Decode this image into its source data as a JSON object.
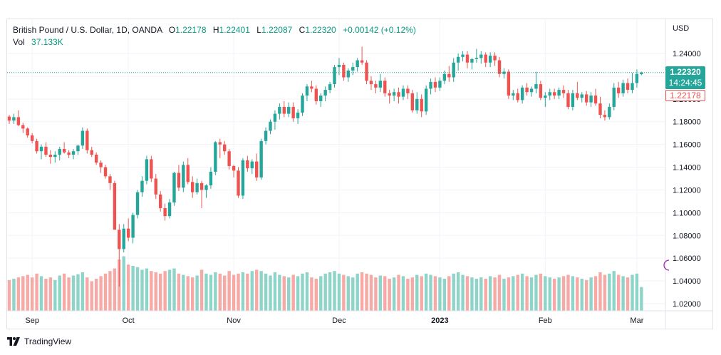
{
  "legend": {
    "symbol": "British Pound / U.S. Dollar, 1D, OANDA",
    "open_label": "O",
    "open": "1.22178",
    "high_label": "H",
    "high": "1.22401",
    "low_label": "L",
    "low": "1.22087",
    "close_label": "C",
    "close": "1.22320",
    "change": "+0.00142 (+0.12%)",
    "volume_label": "Vol",
    "volume": "37.133K"
  },
  "price_scale": {
    "currency": "USD",
    "last_price": "1.22320",
    "countdown": "14:24:45",
    "open_price": "1.22178"
  },
  "brand": {
    "name": "TradingView"
  },
  "colors": {
    "up": "#26a69a",
    "down": "#ef5350",
    "up_volume": "#8fd4c9",
    "down_volume": "#f6a9a5",
    "grid": "#f0f3fa"
  },
  "icons": {
    "logo": "tradingview-logo-icon",
    "alert": "alert-circle-icon"
  },
  "chart_data": {
    "type": "candlestick",
    "title": "British Pound / U.S. Dollar, 1D, OANDA",
    "y_ticks": [
      "1.24000",
      "1.22000",
      "1.20000",
      "1.18000",
      "1.16000",
      "1.14000",
      "1.12000",
      "1.10000",
      "1.08000",
      "1.06000",
      "1.04000",
      "1.02000"
    ],
    "ylim": [
      1.02,
      1.24
    ],
    "x_labels": [
      {
        "label": "Sep",
        "index": 5,
        "bold": false
      },
      {
        "label": "Oct",
        "index": 26,
        "bold": false
      },
      {
        "label": "Nov",
        "index": 49,
        "bold": false
      },
      {
        "label": "Dec",
        "index": 72,
        "bold": false
      },
      {
        "label": "2023",
        "index": 94,
        "bold": true
      },
      {
        "label": "Feb",
        "index": 117,
        "bold": false
      },
      {
        "label": "Mar",
        "index": 137,
        "bold": false
      }
    ],
    "grid": true,
    "last_close": 1.2232,
    "candles": [
      [
        1.1845,
        1.186,
        1.178,
        1.181,
        48
      ],
      [
        1.181,
        1.187,
        1.178,
        1.184,
        50
      ],
      [
        1.184,
        1.19,
        1.176,
        1.177,
        52
      ],
      [
        1.177,
        1.179,
        1.17,
        1.174,
        54
      ],
      [
        1.174,
        1.175,
        1.166,
        1.168,
        56
      ],
      [
        1.168,
        1.17,
        1.161,
        1.163,
        52
      ],
      [
        1.163,
        1.165,
        1.152,
        1.154,
        58
      ],
      [
        1.154,
        1.16,
        1.147,
        1.158,
        54
      ],
      [
        1.158,
        1.162,
        1.149,
        1.151,
        50
      ],
      [
        1.151,
        1.155,
        1.143,
        1.149,
        52
      ],
      [
        1.149,
        1.154,
        1.144,
        1.151,
        48
      ],
      [
        1.151,
        1.158,
        1.146,
        1.156,
        55
      ],
      [
        1.156,
        1.162,
        1.152,
        1.153,
        58
      ],
      [
        1.153,
        1.155,
        1.148,
        1.151,
        52
      ],
      [
        1.151,
        1.156,
        1.147,
        1.154,
        55
      ],
      [
        1.154,
        1.16,
        1.151,
        1.159,
        57
      ],
      [
        1.159,
        1.175,
        1.156,
        1.172,
        60
      ],
      [
        1.172,
        1.174,
        1.152,
        1.155,
        52
      ],
      [
        1.155,
        1.158,
        1.149,
        1.151,
        46
      ],
      [
        1.151,
        1.153,
        1.142,
        1.144,
        50
      ],
      [
        1.144,
        1.146,
        1.135,
        1.14,
        54
      ],
      [
        1.14,
        1.142,
        1.13,
        1.132,
        58
      ],
      [
        1.132,
        1.134,
        1.12,
        1.126,
        62
      ],
      [
        1.126,
        1.128,
        1.087,
        1.085,
        66
      ],
      [
        1.085,
        1.09,
        1.035,
        1.068,
        80
      ],
      [
        1.068,
        1.09,
        1.065,
        1.086,
        85
      ],
      [
        1.086,
        1.095,
        1.075,
        1.078,
        72
      ],
      [
        1.078,
        1.1,
        1.073,
        1.098,
        70
      ],
      [
        1.098,
        1.12,
        1.095,
        1.118,
        68
      ],
      [
        1.118,
        1.132,
        1.114,
        1.128,
        64
      ],
      [
        1.128,
        1.15,
        1.125,
        1.147,
        66
      ],
      [
        1.147,
        1.15,
        1.127,
        1.13,
        62
      ],
      [
        1.13,
        1.134,
        1.112,
        1.116,
        60
      ],
      [
        1.116,
        1.119,
        1.101,
        1.104,
        58
      ],
      [
        1.104,
        1.108,
        1.093,
        1.097,
        62
      ],
      [
        1.097,
        1.112,
        1.095,
        1.109,
        64
      ],
      [
        1.109,
        1.136,
        1.106,
        1.135,
        66
      ],
      [
        1.135,
        1.142,
        1.119,
        1.122,
        58
      ],
      [
        1.122,
        1.145,
        1.118,
        1.142,
        56
      ],
      [
        1.142,
        1.148,
        1.125,
        1.127,
        54
      ],
      [
        1.127,
        1.132,
        1.113,
        1.118,
        52
      ],
      [
        1.118,
        1.13,
        1.116,
        1.126,
        55
      ],
      [
        1.126,
        1.128,
        1.104,
        1.12,
        64
      ],
      [
        1.12,
        1.125,
        1.113,
        1.124,
        58
      ],
      [
        1.124,
        1.14,
        1.121,
        1.136,
        56
      ],
      [
        1.136,
        1.163,
        1.133,
        1.162,
        60
      ],
      [
        1.162,
        1.165,
        1.148,
        1.16,
        58
      ],
      [
        1.16,
        1.163,
        1.151,
        1.154,
        55
      ],
      [
        1.154,
        1.156,
        1.138,
        1.141,
        62
      ],
      [
        1.141,
        1.142,
        1.131,
        1.137,
        56
      ],
      [
        1.137,
        1.14,
        1.113,
        1.115,
        58
      ],
      [
        1.115,
        1.148,
        1.112,
        1.146,
        60
      ],
      [
        1.146,
        1.15,
        1.136,
        1.139,
        58
      ],
      [
        1.139,
        1.147,
        1.134,
        1.145,
        62
      ],
      [
        1.145,
        1.152,
        1.128,
        1.131,
        64
      ],
      [
        1.131,
        1.165,
        1.129,
        1.163,
        62
      ],
      [
        1.163,
        1.175,
        1.16,
        1.172,
        58
      ],
      [
        1.172,
        1.182,
        1.169,
        1.18,
        55
      ],
      [
        1.18,
        1.19,
        1.173,
        1.187,
        60
      ],
      [
        1.187,
        1.196,
        1.182,
        1.193,
        56
      ],
      [
        1.193,
        1.198,
        1.184,
        1.187,
        54
      ],
      [
        1.187,
        1.197,
        1.184,
        1.193,
        52
      ],
      [
        1.193,
        1.197,
        1.18,
        1.183,
        56
      ],
      [
        1.183,
        1.191,
        1.178,
        1.188,
        54
      ],
      [
        1.188,
        1.205,
        1.185,
        1.203,
        58
      ],
      [
        1.203,
        1.213,
        1.198,
        1.211,
        60
      ],
      [
        1.211,
        1.216,
        1.206,
        1.209,
        52
      ],
      [
        1.209,
        1.212,
        1.195,
        1.198,
        50
      ],
      [
        1.198,
        1.205,
        1.193,
        1.203,
        54
      ],
      [
        1.203,
        1.211,
        1.198,
        1.208,
        58
      ],
      [
        1.208,
        1.215,
        1.205,
        1.213,
        60
      ],
      [
        1.213,
        1.23,
        1.21,
        1.228,
        62
      ],
      [
        1.228,
        1.236,
        1.221,
        1.23,
        58
      ],
      [
        1.23,
        1.232,
        1.216,
        1.219,
        56
      ],
      [
        1.219,
        1.227,
        1.215,
        1.225,
        54
      ],
      [
        1.225,
        1.232,
        1.221,
        1.228,
        52
      ],
      [
        1.228,
        1.236,
        1.224,
        1.234,
        58
      ],
      [
        1.234,
        1.246,
        1.23,
        1.232,
        60
      ],
      [
        1.232,
        1.234,
        1.213,
        1.216,
        58
      ],
      [
        1.216,
        1.22,
        1.208,
        1.213,
        56
      ],
      [
        1.213,
        1.216,
        1.205,
        1.21,
        52
      ],
      [
        1.21,
        1.222,
        1.206,
        1.216,
        55
      ],
      [
        1.216,
        1.219,
        1.202,
        1.205,
        54
      ],
      [
        1.205,
        1.208,
        1.196,
        1.203,
        50
      ],
      [
        1.203,
        1.209,
        1.198,
        1.206,
        52
      ],
      [
        1.206,
        1.21,
        1.196,
        1.202,
        56
      ],
      [
        1.202,
        1.212,
        1.199,
        1.209,
        54
      ],
      [
        1.209,
        1.212,
        1.2,
        1.205,
        50
      ],
      [
        1.205,
        1.208,
        1.188,
        1.19,
        52
      ],
      [
        1.19,
        1.206,
        1.187,
        1.2,
        56
      ],
      [
        1.2,
        1.204,
        1.184,
        1.189,
        54
      ],
      [
        1.189,
        1.212,
        1.186,
        1.209,
        58
      ],
      [
        1.209,
        1.218,
        1.204,
        1.215,
        56
      ],
      [
        1.215,
        1.219,
        1.206,
        1.21,
        54
      ],
      [
        1.21,
        1.219,
        1.207,
        1.216,
        52
      ],
      [
        1.216,
        1.225,
        1.213,
        1.222,
        50
      ],
      [
        1.222,
        1.229,
        1.215,
        1.219,
        54
      ],
      [
        1.219,
        1.236,
        1.215,
        1.232,
        58
      ],
      [
        1.232,
        1.24,
        1.225,
        1.237,
        60
      ],
      [
        1.237,
        1.242,
        1.233,
        1.239,
        56
      ],
      [
        1.239,
        1.242,
        1.227,
        1.232,
        54
      ],
      [
        1.232,
        1.236,
        1.226,
        1.235,
        52
      ],
      [
        1.235,
        1.244,
        1.232,
        1.236,
        50
      ],
      [
        1.236,
        1.242,
        1.231,
        1.239,
        52
      ],
      [
        1.239,
        1.241,
        1.228,
        1.232,
        50
      ],
      [
        1.232,
        1.241,
        1.228,
        1.238,
        54
      ],
      [
        1.238,
        1.241,
        1.229,
        1.234,
        52
      ],
      [
        1.234,
        1.237,
        1.219,
        1.222,
        56
      ],
      [
        1.222,
        1.227,
        1.218,
        1.224,
        50
      ],
      [
        1.224,
        1.226,
        1.2,
        1.203,
        52
      ],
      [
        1.203,
        1.208,
        1.199,
        1.205,
        54
      ],
      [
        1.205,
        1.209,
        1.197,
        1.199,
        56
      ],
      [
        1.199,
        1.212,
        1.196,
        1.21,
        58
      ],
      [
        1.21,
        1.214,
        1.203,
        1.206,
        54
      ],
      [
        1.206,
        1.211,
        1.202,
        1.209,
        52
      ],
      [
        1.209,
        1.224,
        1.205,
        1.213,
        56
      ],
      [
        1.213,
        1.216,
        1.199,
        1.201,
        58
      ],
      [
        1.201,
        1.206,
        1.193,
        1.203,
        54
      ],
      [
        1.203,
        1.209,
        1.199,
        1.206,
        52
      ],
      [
        1.206,
        1.209,
        1.2,
        1.203,
        50
      ],
      [
        1.203,
        1.21,
        1.2,
        1.208,
        52
      ],
      [
        1.208,
        1.212,
        1.201,
        1.205,
        54
      ],
      [
        1.205,
        1.208,
        1.191,
        1.193,
        56
      ],
      [
        1.193,
        1.208,
        1.19,
        1.205,
        54
      ],
      [
        1.205,
        1.215,
        1.199,
        1.201,
        52
      ],
      [
        1.201,
        1.206,
        1.197,
        1.204,
        50
      ],
      [
        1.204,
        1.207,
        1.194,
        1.197,
        48
      ],
      [
        1.197,
        1.206,
        1.193,
        1.203,
        52
      ],
      [
        1.203,
        1.209,
        1.194,
        1.196,
        54
      ],
      [
        1.196,
        1.202,
        1.183,
        1.186,
        60
      ],
      [
        1.186,
        1.19,
        1.181,
        1.184,
        56
      ],
      [
        1.184,
        1.196,
        1.182,
        1.193,
        58
      ],
      [
        1.193,
        1.214,
        1.19,
        1.21,
        62
      ],
      [
        1.21,
        1.215,
        1.201,
        1.205,
        56
      ],
      [
        1.205,
        1.217,
        1.202,
        1.214,
        54
      ],
      [
        1.214,
        1.218,
        1.205,
        1.208,
        52
      ],
      [
        1.208,
        1.223,
        1.205,
        1.214,
        56
      ],
      [
        1.214,
        1.226,
        1.21,
        1.222,
        58
      ],
      [
        1.22178,
        1.22401,
        1.22087,
        1.2232,
        37
      ]
    ]
  }
}
